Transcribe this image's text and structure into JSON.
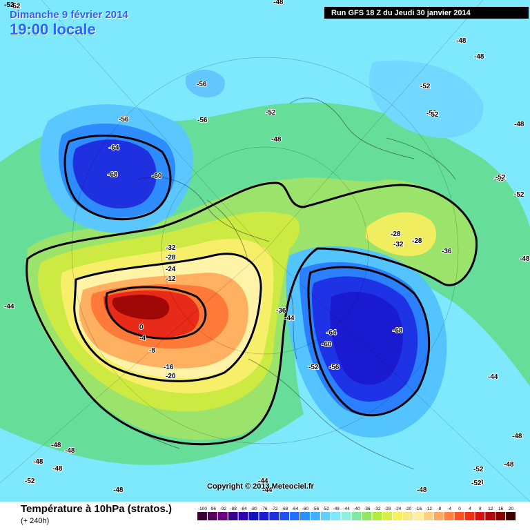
{
  "header": {
    "date": "Dimanche 9 février 2014",
    "time": "19:00 locale",
    "run": "Run GFS 18 Z du Jeudi 30 janvier 2014",
    "corner_value": "-52"
  },
  "footer": {
    "title": "Température à 10hPa (stratos.)",
    "subtitle": "(+ 240h)",
    "copyright": "Copyright © 2013 Meteociel.fr"
  },
  "legend": {
    "values": [
      "-100",
      "-96",
      "-92",
      "-88",
      "-84",
      "-80",
      "-76",
      "-72",
      "-68",
      "-64",
      "-60",
      "-56",
      "-52",
      "-48",
      "-44",
      "-40",
      "-36",
      "-32",
      "-28",
      "-24",
      "-20",
      "-16",
      "-12",
      "-8",
      "-4",
      "0",
      "4",
      "8",
      "12",
      "16",
      "20"
    ],
    "colors": [
      "#3b0033",
      "#55005a",
      "#6e0080",
      "#3a0090",
      "#2a00b0",
      "#1010c0",
      "#1a1ad0",
      "#1e30e0",
      "#1e50f0",
      "#2070ff",
      "#2890ff",
      "#40b0ff",
      "#60d0ff",
      "#7fe8ff",
      "#90f0e0",
      "#80e8a0",
      "#90e860",
      "#b0ee40",
      "#d8f040",
      "#f8f060",
      "#fce880",
      "#fff0a0",
      "#ffd080",
      "#ffa860",
      "#ff8040",
      "#ff5020",
      "#f03010",
      "#d81010",
      "#b00808",
      "#880000",
      "#400000"
    ]
  },
  "map_labels": [
    {
      "text": "-56"
    },
    {
      "text": "-56"
    },
    {
      "text": "-56"
    },
    {
      "text": "-64"
    },
    {
      "text": "-68"
    },
    {
      "text": "-60"
    },
    {
      "text": "-52"
    },
    {
      "text": "-48"
    },
    {
      "text": "-52"
    },
    {
      "text": "-52"
    },
    {
      "text": "-48"
    },
    {
      "text": "-48"
    },
    {
      "text": "-48"
    },
    {
      "text": "-48"
    },
    {
      "text": "-52"
    },
    {
      "text": "-52"
    },
    {
      "text": "-48"
    },
    {
      "text": "-28"
    },
    {
      "text": "-32"
    },
    {
      "text": "-28"
    },
    {
      "text": "-36"
    },
    {
      "text": "-32"
    },
    {
      "text": "-28"
    },
    {
      "text": "-24"
    },
    {
      "text": "-12"
    },
    {
      "text": "0"
    },
    {
      "text": "-4"
    },
    {
      "text": "-8"
    },
    {
      "text": "-16"
    },
    {
      "text": "-20"
    },
    {
      "text": "-36"
    },
    {
      "text": "-44"
    },
    {
      "text": "-64"
    },
    {
      "text": "-60"
    },
    {
      "text": "-68"
    },
    {
      "text": "-56"
    },
    {
      "text": "-52"
    },
    {
      "text": "-44"
    },
    {
      "text": "-44"
    },
    {
      "text": "-48"
    },
    {
      "text": "-48"
    },
    {
      "text": "-48"
    },
    {
      "text": "-48"
    },
    {
      "text": "-52"
    },
    {
      "text": "-48"
    },
    {
      "text": "-44"
    },
    {
      "text": "-48"
    },
    {
      "text": "-52"
    },
    {
      "text": "-48"
    },
    {
      "text": "-48"
    },
    {
      "text": "-44"
    },
    {
      "text": "-52"
    },
    {
      "text": "-48"
    },
    {
      "text": "-48"
    },
    {
      "text": "-52"
    },
    {
      "text": "-52"
    }
  ]
}
